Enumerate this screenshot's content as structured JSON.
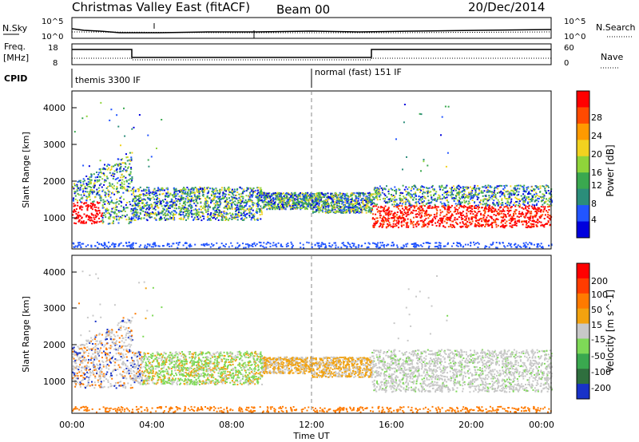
{
  "header": {
    "title": "Christmas Valley East (fitACF)",
    "beam": "Beam 00",
    "date": "20/Dec/2014"
  },
  "top_panels": {
    "nsky_label": "N.Sky",
    "nsearch_label": "N.Search",
    "nsky_ticks": [
      "10^5",
      "10^0"
    ],
    "nsearch_ticks": [
      "10^5",
      "10^0"
    ],
    "freq_label_line1": "Freq.",
    "freq_label_line2": "[MHz]",
    "freq_ticks": [
      "18",
      "8"
    ],
    "nave_label": "Nave",
    "nave_ticks": [
      "60",
      "0"
    ],
    "cpid_label": "CPID",
    "cpid_segments": [
      {
        "label": "themis 3300 IF",
        "start_hour": 0
      },
      {
        "label": "normal (fast) 151 IF",
        "start_hour": 12
      }
    ]
  },
  "colors": {
    "power": [
      "#0000dd",
      "#2255ff",
      "#2b8d7a",
      "#3aa84f",
      "#8fd43a",
      "#f2d21f",
      "#ff9a00",
      "#ff4a00",
      "#ff0000"
    ],
    "velocity": [
      "#1832c8",
      "#2f6f3e",
      "#3aa84f",
      "#7ed957",
      "#c8c8c8",
      "#f2a20f",
      "#ff7a00",
      "#ff3c00",
      "#ff0000"
    ]
  },
  "chart_data": [
    {
      "type": "heatmap",
      "quantity": "Power",
      "ylabel": "Slant Range [km]",
      "ylim": [
        200,
        4500
      ],
      "yticks": [
        "1000",
        "2000",
        "3000",
        "4000"
      ],
      "xlim": [
        0,
        24
      ],
      "colorbar": {
        "label": "Power [dB]",
        "ticks": [
          "4",
          "8",
          "12",
          "16",
          "20",
          "24",
          "28"
        ],
        "range": [
          0,
          32
        ]
      }
    },
    {
      "type": "heatmap",
      "quantity": "Velocity",
      "ylabel": "Slant Range [km]",
      "ylim": [
        200,
        4500
      ],
      "yticks": [
        "1000",
        "2000",
        "3000",
        "4000"
      ],
      "xlim": [
        0,
        24
      ],
      "colorbar": {
        "label": "Velocity [m s^-1]",
        "ticks": [
          "200",
          "100",
          "50",
          "15",
          "-15",
          "-50",
          "-100",
          "-200"
        ]
      }
    }
  ],
  "x_axis": {
    "ticks": [
      "00:00",
      "04:00",
      "08:00",
      "12:00",
      "16:00",
      "20:00",
      "00:00"
    ],
    "label": "Time UT"
  }
}
